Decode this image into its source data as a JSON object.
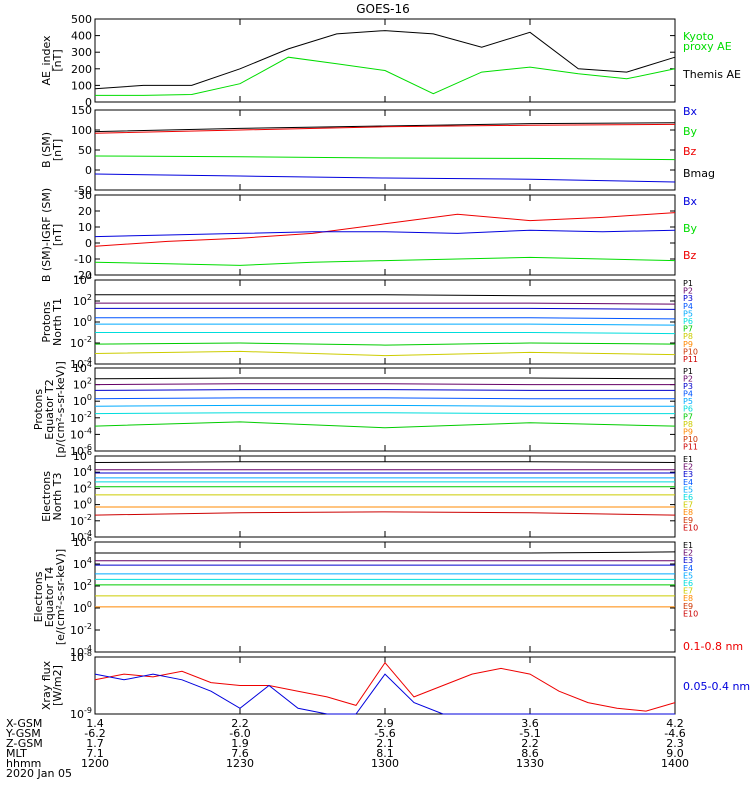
{
  "title": "GOES-16",
  "chart_data": [
    {
      "type": "line",
      "ylabel": "AE_index\n[nT]",
      "ylim": [
        0,
        500
      ],
      "yscale": "linear",
      "yticks": [
        0,
        100,
        200,
        300,
        400,
        500
      ],
      "x": [
        0,
        10,
        20,
        30,
        40,
        50,
        60,
        70,
        80,
        90,
        100,
        110,
        120
      ],
      "series": [
        {
          "name": "Themis AE",
          "color": "#000000",
          "values": [
            80,
            100,
            100,
            200,
            320,
            410,
            430,
            410,
            330,
            420,
            200,
            180,
            270
          ]
        },
        {
          "name": "Kyoto proxy AE",
          "color": "#00dd00",
          "values": [
            40,
            40,
            45,
            110,
            270,
            230,
            190,
            50,
            180,
            210,
            170,
            140,
            200
          ]
        }
      ],
      "legend": [
        {
          "label": "Kyoto",
          "color": "#00dd00"
        },
        {
          "label": "proxy AE",
          "color": "#00dd00"
        },
        {
          "label": "Themis AE",
          "color": "#000000"
        }
      ]
    },
    {
      "type": "line",
      "ylabel": "B (SM)\n[nT]",
      "ylim": [
        -50,
        150
      ],
      "yscale": "linear",
      "yticks": [
        -50,
        0,
        50,
        100,
        150
      ],
      "x": [
        0,
        30,
        60,
        90,
        120
      ],
      "series": [
        {
          "name": "Bmag",
          "color": "#000000",
          "values": [
            96,
            104,
            110,
            116,
            118
          ]
        },
        {
          "name": "Bz",
          "color": "#ee0000",
          "values": [
            92,
            100,
            108,
            112,
            114
          ]
        },
        {
          "name": "By",
          "color": "#00dd00",
          "values": [
            35,
            33,
            30,
            29,
            26
          ]
        },
        {
          "name": "Bx",
          "color": "#0000dd",
          "values": [
            -10,
            -15,
            -20,
            -23,
            -30
          ]
        }
      ],
      "legend": [
        {
          "label": "Bx",
          "color": "#0000dd"
        },
        {
          "label": "By",
          "color": "#00dd00"
        },
        {
          "label": "Bz",
          "color": "#ee0000"
        },
        {
          "label": "Bmag",
          "color": "#000000"
        }
      ]
    },
    {
      "type": "line",
      "ylabel": "B (SM)-IGRF (SM)\n[nT]",
      "ylim": [
        -20,
        30
      ],
      "yscale": "linear",
      "yticks": [
        -20,
        -10,
        0,
        10,
        20,
        30
      ],
      "x": [
        0,
        15,
        30,
        45,
        60,
        75,
        90,
        105,
        120
      ],
      "series": [
        {
          "name": "Bz",
          "color": "#ee0000",
          "values": [
            -2,
            1,
            3,
            6,
            12,
            18,
            14,
            16,
            19
          ]
        },
        {
          "name": "Bx",
          "color": "#0000dd",
          "values": [
            4,
            5,
            6,
            7,
            7,
            6,
            8,
            7,
            8
          ]
        },
        {
          "name": "By",
          "color": "#00dd00",
          "values": [
            -12,
            -13,
            -14,
            -12,
            -11,
            -10,
            -9,
            -10,
            -11
          ]
        }
      ],
      "legend": [
        {
          "label": "Bx",
          "color": "#0000dd"
        },
        {
          "label": "By",
          "color": "#00dd00"
        },
        {
          "label": "Bz",
          "color": "#ee0000"
        }
      ]
    },
    {
      "type": "line",
      "ylabel": "Protons\nNorth T1",
      "ylim": [
        -4,
        4
      ],
      "yscale": "log",
      "yticks": [
        -4,
        -2,
        0,
        2,
        4
      ],
      "x": [
        0,
        30,
        60,
        90,
        120
      ],
      "series": [
        {
          "name": "P1",
          "color": "#000000",
          "values": [
            2.6,
            2.6,
            2.6,
            2.5,
            2.5
          ]
        },
        {
          "name": "P2",
          "color": "#660066",
          "values": [
            1.8,
            1.8,
            1.8,
            1.8,
            1.7
          ]
        },
        {
          "name": "P3",
          "color": "#0000cc",
          "values": [
            1.3,
            1.3,
            1.3,
            1.3,
            1.2
          ]
        },
        {
          "name": "P4",
          "color": "#0055ff",
          "values": [
            0.4,
            0.4,
            0.4,
            0.4,
            0.3
          ]
        },
        {
          "name": "P5",
          "color": "#00aaff",
          "values": [
            -0.2,
            -0.2,
            -0.2,
            -0.2,
            -0.3
          ]
        },
        {
          "name": "P6",
          "color": "#00dddd",
          "values": [
            -1.0,
            -1.0,
            -1.0,
            -1.0,
            -1.1
          ]
        },
        {
          "name": "P7",
          "color": "#00cc00",
          "values": [
            -2.1,
            -2.0,
            -2.2,
            -2.0,
            -2.1
          ]
        },
        {
          "name": "P8",
          "color": "#cccc00",
          "values": [
            -3.0,
            -2.8,
            -3.2,
            -2.9,
            -3.1
          ]
        }
      ],
      "legend": [
        {
          "label": "P1",
          "color": "#000000"
        },
        {
          "label": "P2",
          "color": "#660066"
        },
        {
          "label": "P3",
          "color": "#0000cc"
        },
        {
          "label": "P4",
          "color": "#0055ff"
        },
        {
          "label": "P5",
          "color": "#00aaff"
        },
        {
          "label": "P6",
          "color": "#00dddd"
        },
        {
          "label": "P7",
          "color": "#00cc00"
        },
        {
          "label": "P8",
          "color": "#cccc00"
        },
        {
          "label": "P9",
          "color": "#ff8800"
        },
        {
          "label": "P10",
          "color": "#cc3300"
        },
        {
          "label": "P11",
          "color": "#cc0000"
        }
      ]
    },
    {
      "type": "line",
      "ylabel": "Protons\nEquator T2\n[p/(cm²-s-sr-keV)]",
      "ylim": [
        -6,
        4
      ],
      "yscale": "log",
      "yticks": [
        -6,
        -4,
        -2,
        0,
        2,
        4
      ],
      "x": [
        0,
        30,
        60,
        90,
        120
      ],
      "series": [
        {
          "name": "P1",
          "color": "#000000",
          "values": [
            2.7,
            2.8,
            2.8,
            2.8,
            2.7
          ]
        },
        {
          "name": "P2",
          "color": "#660066",
          "values": [
            2.0,
            2.1,
            2.1,
            2.0,
            2.0
          ]
        },
        {
          "name": "P3",
          "color": "#0000cc",
          "values": [
            1.3,
            1.4,
            1.4,
            1.3,
            1.3
          ]
        },
        {
          "name": "P4",
          "color": "#0055ff",
          "values": [
            0.3,
            0.4,
            0.4,
            0.3,
            0.3
          ]
        },
        {
          "name": "P5",
          "color": "#00aaff",
          "values": [
            -0.6,
            -0.5,
            -0.5,
            -0.6,
            -0.6
          ]
        },
        {
          "name": "P6",
          "color": "#00dddd",
          "values": [
            -1.5,
            -1.4,
            -1.4,
            -1.5,
            -1.5
          ]
        },
        {
          "name": "P7",
          "color": "#00cc00",
          "values": [
            -3.0,
            -2.5,
            -3.2,
            -2.6,
            -3.0
          ]
        }
      ],
      "legend": [
        {
          "label": "P1",
          "color": "#000000"
        },
        {
          "label": "P2",
          "color": "#660066"
        },
        {
          "label": "P3",
          "color": "#0000cc"
        },
        {
          "label": "P4",
          "color": "#0055ff"
        },
        {
          "label": "P5",
          "color": "#00aaff"
        },
        {
          "label": "P6",
          "color": "#00dddd"
        },
        {
          "label": "P7",
          "color": "#00cc00"
        },
        {
          "label": "P8",
          "color": "#cccc00"
        },
        {
          "label": "P9",
          "color": "#ff8800"
        },
        {
          "label": "P10",
          "color": "#cc3300"
        },
        {
          "label": "P11",
          "color": "#cc0000"
        }
      ]
    },
    {
      "type": "line",
      "ylabel": "Electrons\nNorth T3",
      "ylim": [
        -4,
        6
      ],
      "yscale": "log",
      "yticks": [
        -4,
        -2,
        0,
        2,
        4,
        6
      ],
      "x": [
        0,
        30,
        60,
        90,
        120
      ],
      "series": [
        {
          "name": "E1",
          "color": "#000000",
          "values": [
            5.2,
            5.3,
            5.3,
            5.3,
            5.2
          ]
        },
        {
          "name": "E2",
          "color": "#660066",
          "values": [
            4.3,
            4.3,
            4.3,
            4.3,
            4.3
          ]
        },
        {
          "name": "E3",
          "color": "#0000cc",
          "values": [
            3.9,
            3.9,
            3.9,
            3.9,
            3.9
          ]
        },
        {
          "name": "E4",
          "color": "#00aaff",
          "values": [
            3.3,
            3.3,
            3.3,
            3.3,
            3.3
          ]
        },
        {
          "name": "E5",
          "color": "#00dddd",
          "values": [
            2.8,
            2.8,
            2.8,
            2.8,
            2.8
          ]
        },
        {
          "name": "E6",
          "color": "#00cc00",
          "values": [
            2.2,
            2.2,
            2.2,
            2.2,
            2.2
          ]
        },
        {
          "name": "E7",
          "color": "#cccc00",
          "values": [
            1.2,
            1.2,
            1.2,
            1.2,
            1.2
          ]
        },
        {
          "name": "E8",
          "color": "#ff8800",
          "values": [
            -0.3,
            -0.3,
            -0.3,
            -0.3,
            -0.3
          ]
        },
        {
          "name": "E9",
          "color": "#cc0000",
          "values": [
            -1.3,
            -1.0,
            -0.9,
            -1.0,
            -1.3
          ]
        }
      ],
      "legend": [
        {
          "label": "E1",
          "color": "#000000"
        },
        {
          "label": "E2",
          "color": "#660066"
        },
        {
          "label": "E3",
          "color": "#0000cc"
        },
        {
          "label": "E4",
          "color": "#0055ff"
        },
        {
          "label": "E5",
          "color": "#00aaff"
        },
        {
          "label": "E6",
          "color": "#00dddd"
        },
        {
          "label": "E7",
          "color": "#cccc00"
        },
        {
          "label": "E8",
          "color": "#ff8800"
        },
        {
          "label": "E9",
          "color": "#cc3300"
        },
        {
          "label": "E10",
          "color": "#cc0000"
        }
      ]
    },
    {
      "type": "line",
      "ylabel": "Electrons\nEquator T4\n[e/(cm²-s-sr-keV)]",
      "ylim": [
        -4,
        6
      ],
      "yscale": "log",
      "yticks": [
        -4,
        -2,
        0,
        2,
        4,
        6
      ],
      "x": [
        0,
        30,
        60,
        90,
        120
      ],
      "series": [
        {
          "name": "E1",
          "color": "#000000",
          "values": [
            5.0,
            5.0,
            5.0,
            5.0,
            5.1
          ]
        },
        {
          "name": "E2",
          "color": "#660066",
          "values": [
            4.3,
            4.3,
            4.3,
            4.3,
            4.3
          ]
        },
        {
          "name": "E3",
          "color": "#0000cc",
          "values": [
            3.9,
            3.9,
            3.9,
            3.9,
            3.9
          ]
        },
        {
          "name": "E4",
          "color": "#00aaff",
          "values": [
            3.1,
            3.1,
            3.1,
            3.1,
            3.1
          ]
        },
        {
          "name": "E5",
          "color": "#00dddd",
          "values": [
            2.6,
            2.6,
            2.6,
            2.6,
            2.6
          ]
        },
        {
          "name": "E6",
          "color": "#00cc00",
          "values": [
            2.1,
            2.1,
            2.1,
            2.1,
            2.1
          ]
        },
        {
          "name": "E7",
          "color": "#cccc00",
          "values": [
            1.1,
            1.1,
            1.1,
            1.1,
            1.1
          ]
        },
        {
          "name": "E8",
          "color": "#ff8800",
          "values": [
            0.1,
            0.1,
            0.1,
            0.1,
            0.1
          ]
        }
      ],
      "legend": [
        {
          "label": "E1",
          "color": "#000000"
        },
        {
          "label": "E2",
          "color": "#660066"
        },
        {
          "label": "E3",
          "color": "#0000cc"
        },
        {
          "label": "E4",
          "color": "#0055ff"
        },
        {
          "label": "E5",
          "color": "#00aaff"
        },
        {
          "label": "E6",
          "color": "#00dddd"
        },
        {
          "label": "E7",
          "color": "#cccc00"
        },
        {
          "label": "E8",
          "color": "#ff8800"
        },
        {
          "label": "E9",
          "color": "#cc3300"
        },
        {
          "label": "E10",
          "color": "#cc0000"
        }
      ]
    },
    {
      "type": "line",
      "ylabel": "Xray flux\n[W/m2]",
      "ylim": [
        -9,
        -8
      ],
      "yscale": "log",
      "yticks": [
        -9,
        -8
      ],
      "x": [
        0,
        6,
        12,
        18,
        24,
        30,
        36,
        42,
        48,
        54,
        60,
        66,
        72,
        78,
        84,
        90,
        96,
        102,
        108,
        114,
        120
      ],
      "series": [
        {
          "name": "0.1-0.8 nm",
          "color": "#ee0000",
          "values": [
            -8.4,
            -8.3,
            -8.35,
            -8.25,
            -8.45,
            -8.5,
            -8.5,
            -8.6,
            -8.7,
            -8.85,
            -8.1,
            -8.7,
            -8.5,
            -8.3,
            -8.2,
            -8.3,
            -8.6,
            -8.8,
            -8.9,
            -8.95,
            -8.8
          ]
        },
        {
          "name": "0.05-0.4 nm",
          "color": "#0000dd",
          "values": [
            -8.3,
            -8.4,
            -8.3,
            -8.4,
            -8.6,
            -8.9,
            -8.5,
            -8.9,
            -9.0,
            -9.0,
            -8.3,
            -8.8,
            -9.0,
            -9.0,
            -9.0,
            -9.0,
            -9.0,
            -9.0,
            -9.0,
            -9.0,
            -9.0
          ]
        }
      ],
      "legend": [
        {
          "label": "0.1-0.8 nm",
          "color": "#ee0000"
        },
        {
          "label": "0.05-0.4 nm",
          "color": "#0000dd"
        }
      ]
    }
  ],
  "xaxis": {
    "ticks": [
      0,
      30,
      60,
      90,
      120
    ],
    "rows": [
      {
        "label": "X-GSM",
        "values": [
          "1.4",
          "2.2",
          "2.9",
          "3.6",
          "4.2"
        ]
      },
      {
        "label": "Y-GSM",
        "values": [
          "-6.2",
          "-6.0",
          "-5.6",
          "-5.1",
          "-4.6"
        ]
      },
      {
        "label": "Z-GSM",
        "values": [
          "1.7",
          "1.9",
          "2.1",
          "2.2",
          "2.3"
        ]
      },
      {
        "label": "MLT",
        "values": [
          "7.1",
          "7.6",
          "8.1",
          "8.6",
          "9.0"
        ]
      },
      {
        "label": "hhmm",
        "values": [
          "1200",
          "1230",
          "1300",
          "1330",
          "1400"
        ]
      }
    ],
    "date": "2020 Jan 05"
  }
}
